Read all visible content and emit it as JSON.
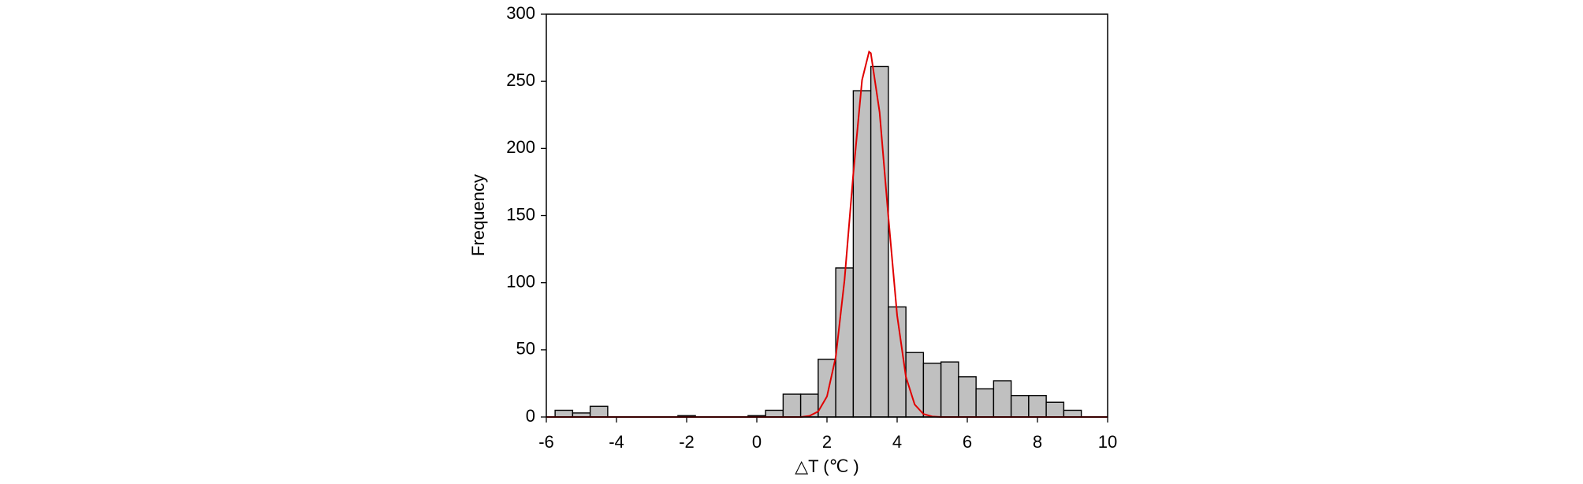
{
  "chart_data": {
    "type": "histogram",
    "x_label": "△T (℃ )",
    "y_label": "Frequency",
    "bins": [
      -5.75,
      -5.25,
      -4.75,
      -4.25,
      -3.75,
      -3.25,
      -2.75,
      -2.25,
      -1.75,
      -1.25,
      -0.75,
      -0.25,
      0.25,
      0.75,
      1.25,
      1.75,
      2.25,
      2.75,
      3.25,
      3.75,
      4.25,
      4.75,
      5.25,
      5.75,
      6.25,
      6.75,
      7.25,
      7.75,
      8.25,
      8.75,
      9.25
    ],
    "values": [
      5,
      3,
      8,
      0,
      0,
      0,
      0,
      1,
      0,
      0,
      0,
      1,
      5,
      17,
      17,
      43,
      111,
      243,
      261,
      82,
      48,
      40,
      41,
      30,
      21,
      27,
      16,
      16,
      11,
      5
    ],
    "color": "#c0c0c0",
    "curve": {
      "color": "#e00000",
      "x": [
        -6,
        1.25,
        1.5,
        1.75,
        2,
        2.25,
        2.5,
        2.75,
        3,
        3.2,
        3.25,
        3.5,
        3.75,
        4,
        4.25,
        4.5,
        4.75,
        5,
        5.25,
        10
      ],
      "values": [
        0,
        0,
        0.8,
        4.1,
        15.3,
        44.7,
        102,
        181,
        251,
        272,
        271,
        227,
        149,
        75.6,
        29.9,
        9.3,
        2.2,
        0.4,
        0,
        0
      ]
    },
    "xlim": [
      -6,
      10
    ],
    "xticks": [
      -6,
      -4,
      -2,
      0,
      2,
      4,
      6,
      8,
      10
    ],
    "ylim": [
      0,
      300
    ],
    "yticks": [
      0,
      50,
      100,
      150,
      200,
      250,
      300
    ]
  }
}
